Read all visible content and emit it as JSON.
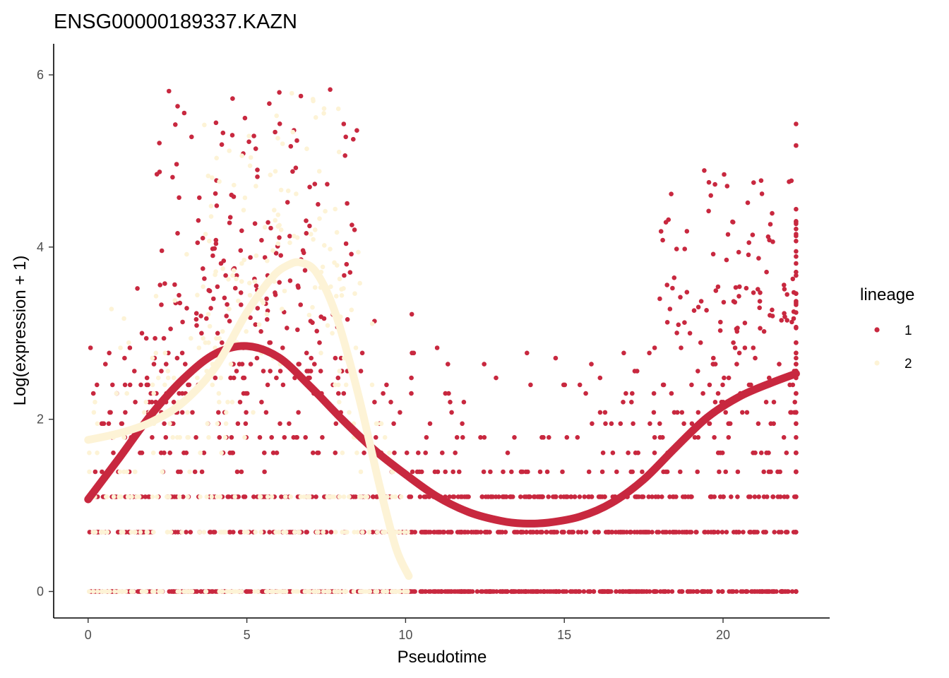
{
  "chart_data": {
    "type": "scatter",
    "title": "ENSG00000189337.KAZN",
    "xlabel": "Pseudotime",
    "ylabel": "Log(expression + 1)",
    "xlim": [
      -1.1,
      23.3
    ],
    "ylim": [
      -0.3,
      6.4
    ],
    "xticks": [
      0,
      5,
      10,
      15,
      20
    ],
    "yticks": [
      0,
      2,
      4,
      6
    ],
    "grid": false,
    "legend": {
      "title": "lineage",
      "placement": "right"
    },
    "series": [
      {
        "name": "1",
        "color": "#c8283f",
        "x_range": [
          0,
          22.3
        ],
        "expression_levels": [
          0,
          0.69,
          1.1,
          1.39,
          1.61,
          1.79,
          1.95,
          2.08,
          2.2,
          2.3,
          2.4,
          2.48,
          2.56,
          2.64,
          2.71,
          2.77,
          2.83,
          2.89,
          2.94,
          3.0
        ],
        "smooth": {
          "x": [
            0,
            1,
            2,
            3,
            4,
            5,
            6,
            7,
            8,
            9,
            10,
            11,
            12,
            13,
            13.7,
            14.5,
            15.5,
            16.5,
            17.5,
            18.5,
            19.5,
            20.5,
            21.5,
            22.3
          ],
          "y": [
            1.07,
            1.56,
            2.06,
            2.47,
            2.76,
            2.85,
            2.72,
            2.38,
            2.0,
            1.65,
            1.36,
            1.1,
            0.92,
            0.82,
            0.79,
            0.8,
            0.87,
            1.03,
            1.3,
            1.67,
            2.02,
            2.26,
            2.42,
            2.53
          ]
        }
      },
      {
        "name": "2",
        "color": "#fdf3d6",
        "x_range": [
          0,
          10.1
        ],
        "expression_levels": [
          0,
          0.69,
          1.1,
          1.39,
          1.61,
          1.79,
          1.95,
          2.08,
          2.2,
          2.3,
          2.4,
          2.48,
          2.56,
          2.64,
          2.71,
          2.77,
          2.83,
          2.89,
          2.94,
          3.0
        ],
        "smooth": {
          "x": [
            0,
            1,
            2,
            3,
            4,
            5,
            5.8,
            6.3,
            6.7,
            7.2,
            7.8,
            8.5,
            9.2,
            9.7,
            10.1
          ],
          "y": [
            1.76,
            1.84,
            1.97,
            2.2,
            2.6,
            3.24,
            3.65,
            3.79,
            3.82,
            3.7,
            3.22,
            2.3,
            1.2,
            0.5,
            0.18
          ]
        }
      }
    ]
  }
}
